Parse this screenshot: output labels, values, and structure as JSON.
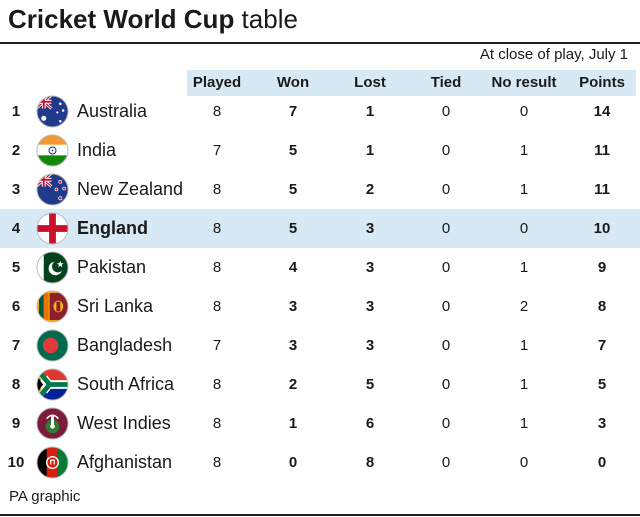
{
  "title": {
    "bold": "Cricket World Cup",
    "light": " table"
  },
  "subtitle": "At close of play, July 1",
  "columns": [
    "Played",
    "Won",
    "Lost",
    "Tied",
    "No result",
    "Points"
  ],
  "rows": [
    {
      "rank": "1",
      "team": "Australia",
      "flag": "australia-flag-icon",
      "played": "8",
      "won": "7",
      "lost": "1",
      "tied": "0",
      "no_result": "0",
      "points": "14"
    },
    {
      "rank": "2",
      "team": "India",
      "flag": "india-flag-icon",
      "played": "7",
      "won": "5",
      "lost": "1",
      "tied": "0",
      "no_result": "1",
      "points": "11"
    },
    {
      "rank": "3",
      "team": "New Zealand",
      "flag": "new-zealand-flag-icon",
      "played": "8",
      "won": "5",
      "lost": "2",
      "tied": "0",
      "no_result": "1",
      "points": "11"
    },
    {
      "rank": "4",
      "team": "England",
      "flag": "england-flag-icon",
      "played": "8",
      "won": "5",
      "lost": "3",
      "tied": "0",
      "no_result": "0",
      "points": "10",
      "highlighted": true
    },
    {
      "rank": "5",
      "team": "Pakistan",
      "flag": "pakistan-flag-icon",
      "played": "8",
      "won": "4",
      "lost": "3",
      "tied": "0",
      "no_result": "1",
      "points": "9"
    },
    {
      "rank": "6",
      "team": "Sri Lanka",
      "flag": "sri-lanka-flag-icon",
      "played": "8",
      "won": "3",
      "lost": "3",
      "tied": "0",
      "no_result": "2",
      "points": "8"
    },
    {
      "rank": "7",
      "team": "Bangladesh",
      "flag": "bangladesh-flag-icon",
      "played": "7",
      "won": "3",
      "lost": "3",
      "tied": "0",
      "no_result": "1",
      "points": "7"
    },
    {
      "rank": "8",
      "team": "South Africa",
      "flag": "south-africa-flag-icon",
      "played": "8",
      "won": "2",
      "lost": "5",
      "tied": "0",
      "no_result": "1",
      "points": "5"
    },
    {
      "rank": "9",
      "team": "West Indies",
      "flag": "west-indies-flag-icon",
      "played": "8",
      "won": "1",
      "lost": "6",
      "tied": "0",
      "no_result": "1",
      "points": "3"
    },
    {
      "rank": "10",
      "team": "Afghanistan",
      "flag": "afghanistan-flag-icon",
      "played": "8",
      "won": "0",
      "lost": "8",
      "tied": "0",
      "no_result": "0",
      "points": "0"
    }
  ],
  "source": "PA graphic",
  "colors": {
    "header_band": "#d7e9f5",
    "highlight_row": "#d7e9f5",
    "rule": "#222222"
  }
}
